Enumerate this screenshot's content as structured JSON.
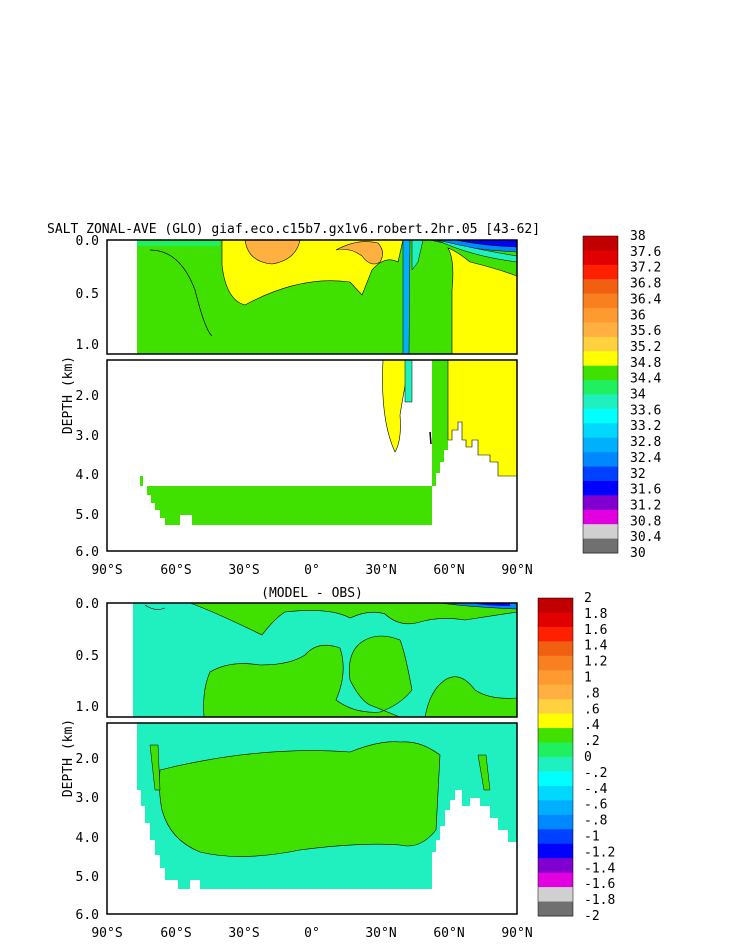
{
  "chart_data": [
    {
      "type": "heatmap",
      "title": "SALT ZONAL-AVE (GLO) giaf.eco.c15b7.gx1v6.robert.2hr.05 [43-62]",
      "xlabel": "",
      "ylabel": "DEPTH (km)",
      "x_ticks": [
        "90°S",
        "60°S",
        "30°S",
        "0°",
        "30°N",
        "60°N",
        "90°N"
      ],
      "y_ticks_upper": [
        "0.0",
        "0.5",
        "1.0"
      ],
      "y_ticks_lower": [
        "2.0",
        "3.0",
        "4.0",
        "5.0",
        "6.0"
      ],
      "xlim": [
        -90,
        90
      ],
      "ylim": [
        6.0,
        0.0
      ],
      "contour_levels": [
        30,
        30.4,
        30.8,
        31.2,
        31.6,
        32,
        32.4,
        32.8,
        33.2,
        33.6,
        34,
        34.4,
        34.8,
        35.2,
        35.6,
        36,
        36.4,
        36.8,
        37.2,
        37.6,
        38
      ],
      "colorbar_labels": [
        "38",
        "37.6",
        "37.2",
        "36.8",
        "36.4",
        "36",
        "35.6",
        "35.2",
        "34.8",
        "34.4",
        "34",
        "33.6",
        "33.2",
        "32.8",
        "32.4",
        "32",
        "31.6",
        "31.2",
        "30.8",
        "30.4",
        "30"
      ],
      "colors": [
        "#C00000",
        "#E00000",
        "#FF2000",
        "#F06010",
        "#F88020",
        "#FF9A30",
        "#FFB040",
        "#FFD040",
        "#FFFF00",
        "#40E000",
        "#20F060",
        "#20F0C0",
        "#00FFFF",
        "#00D8FF",
        "#00B0FF",
        "#0088FF",
        "#0040FF",
        "#0000FF",
        "#8000D0",
        "#E000E0",
        "#D0D0D0",
        "#707070"
      ]
    },
    {
      "type": "heatmap",
      "title": "(MODEL - OBS)",
      "xlabel": "",
      "ylabel": "DEPTH (km)",
      "x_ticks": [
        "90°S",
        "60°S",
        "30°S",
        "0°",
        "30°N",
        "60°N",
        "90°N"
      ],
      "y_ticks_upper": [
        "0.0",
        "0.5",
        "1.0"
      ],
      "y_ticks_lower": [
        "2.0",
        "3.0",
        "4.0",
        "5.0",
        "6.0"
      ],
      "xlim": [
        -90,
        90
      ],
      "ylim": [
        6.0,
        0.0
      ],
      "contour_levels": [
        -2,
        -1.8,
        -1.6,
        -1.4,
        -1.2,
        -1,
        -0.8,
        -0.6,
        -0.4,
        -0.2,
        0,
        0.2,
        0.4,
        0.6,
        0.8,
        1,
        1.2,
        1.4,
        1.6,
        1.8,
        2
      ],
      "colorbar_labels": [
        "2",
        "1.8",
        "1.6",
        "1.4",
        "1.2",
        "1",
        ".8",
        ".6",
        ".4",
        ".2",
        "0",
        "-.2",
        "-.4",
        "-.6",
        "-.8",
        "-1",
        "-1.2",
        "-1.4",
        "-1.6",
        "-1.8",
        "-2"
      ],
      "colors": [
        "#C00000",
        "#E00000",
        "#FF2000",
        "#F06010",
        "#F88020",
        "#FF9A30",
        "#FFB040",
        "#FFD040",
        "#FFFF00",
        "#40E000",
        "#20F060",
        "#20F0C0",
        "#00FFFF",
        "#00D8FF",
        "#00B0FF",
        "#0088FF",
        "#0040FF",
        "#0000FF",
        "#8000D0",
        "#E000E0",
        "#D0D0D0",
        "#707070"
      ]
    }
  ]
}
